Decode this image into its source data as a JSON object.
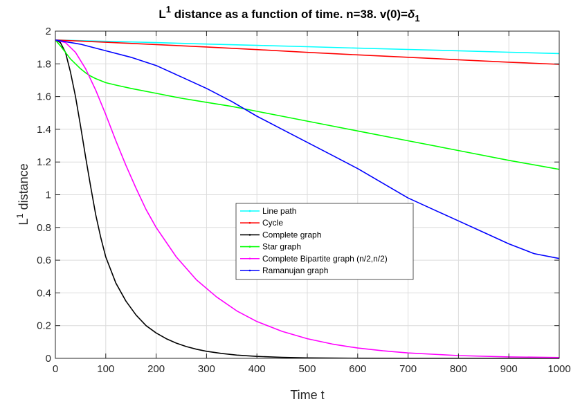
{
  "chart_data": {
    "type": "line",
    "title": {
      "part1": "L",
      "sup1": "1",
      "part2": " distance as a function of time. n=38.  v(0)=",
      "delta": "δ",
      "sub1": "1"
    },
    "xlabel": "Time t",
    "ylabel": {
      "main": "L",
      "sup": "1",
      "rest": " distance"
    },
    "xlim": [
      0,
      1000
    ],
    "ylim": [
      0,
      2
    ],
    "xticks": [
      0,
      100,
      200,
      300,
      400,
      500,
      600,
      700,
      800,
      900,
      1000
    ],
    "yticks": [
      0,
      0.2,
      0.4,
      0.6,
      0.8,
      1,
      1.2,
      1.4,
      1.6,
      1.8,
      2
    ],
    "xtick_labels": [
      "0",
      "100",
      "200",
      "300",
      "400",
      "500",
      "600",
      "700",
      "800",
      "900",
      "1000"
    ],
    "ytick_labels": [
      "0",
      "0.2",
      "0.4",
      "0.6",
      "0.8",
      "1",
      "1.2",
      "1.4",
      "1.6",
      "1.8",
      "2"
    ],
    "grid": true,
    "legend_position": "center",
    "series": [
      {
        "name": "Line path",
        "color": "#00ffff",
        "x": [
          0,
          100,
          200,
          300,
          400,
          500,
          600,
          700,
          800,
          900,
          1000
        ],
        "y": [
          1.946,
          1.938,
          1.93,
          1.921,
          1.913,
          1.905,
          1.896,
          1.888,
          1.88,
          1.871,
          1.863
        ]
      },
      {
        "name": "Cycle",
        "color": "#ff0000",
        "x": [
          0,
          100,
          200,
          300,
          400,
          500,
          600,
          700,
          800,
          900,
          1000
        ],
        "y": [
          1.946,
          1.932,
          1.918,
          1.903,
          1.887,
          1.87,
          1.855,
          1.84,
          1.825,
          1.81,
          1.797
        ]
      },
      {
        "name": "Complete graph",
        "color": "#000000",
        "x": [
          0,
          10,
          20,
          30,
          40,
          50,
          60,
          70,
          80,
          90,
          100,
          120,
          140,
          160,
          180,
          200,
          220,
          240,
          260,
          280,
          300,
          330,
          360,
          400,
          450,
          500,
          600,
          700,
          800,
          900,
          1000
        ],
        "y": [
          1.946,
          1.93,
          1.87,
          1.75,
          1.6,
          1.42,
          1.23,
          1.05,
          0.88,
          0.74,
          0.62,
          0.46,
          0.35,
          0.265,
          0.2,
          0.155,
          0.12,
          0.093,
          0.072,
          0.056,
          0.043,
          0.03,
          0.02,
          0.012,
          0.006,
          0.003,
          0.001,
          0.0,
          0.0,
          0.0,
          0.0
        ]
      },
      {
        "name": "Star graph",
        "color": "#00ff00",
        "x": [
          0,
          10,
          20,
          30,
          40,
          50,
          60,
          70,
          80,
          100,
          120,
          150,
          200,
          250,
          300,
          350,
          400,
          450,
          500,
          600,
          700,
          800,
          900,
          1000
        ],
        "y": [
          1.946,
          1.91,
          1.87,
          1.83,
          1.8,
          1.77,
          1.745,
          1.725,
          1.71,
          1.685,
          1.67,
          1.65,
          1.62,
          1.59,
          1.565,
          1.54,
          1.51,
          1.48,
          1.45,
          1.39,
          1.33,
          1.27,
          1.21,
          1.155
        ]
      },
      {
        "name": "Complete Bipartite graph (n/2,n/2)",
        "color": "#ff00ff",
        "x": [
          0,
          20,
          40,
          60,
          80,
          100,
          120,
          140,
          160,
          180,
          200,
          240,
          280,
          320,
          360,
          400,
          450,
          500,
          550,
          600,
          650,
          700,
          800,
          900,
          1000
        ],
        "y": [
          1.946,
          1.93,
          1.87,
          1.77,
          1.64,
          1.49,
          1.33,
          1.18,
          1.04,
          0.91,
          0.8,
          0.62,
          0.48,
          0.375,
          0.29,
          0.225,
          0.165,
          0.12,
          0.087,
          0.063,
          0.046,
          0.033,
          0.017,
          0.009,
          0.005
        ]
      },
      {
        "name": "Ramanujan graph",
        "color": "#0000ff",
        "x": [
          0,
          50,
          100,
          150,
          200,
          250,
          300,
          350,
          400,
          450,
          500,
          550,
          600,
          650,
          700,
          750,
          800,
          850,
          900,
          950,
          1000
        ],
        "y": [
          1.946,
          1.92,
          1.88,
          1.84,
          1.79,
          1.72,
          1.65,
          1.57,
          1.48,
          1.4,
          1.32,
          1.24,
          1.16,
          1.07,
          0.98,
          0.91,
          0.84,
          0.77,
          0.7,
          0.64,
          0.61
        ]
      }
    ]
  }
}
